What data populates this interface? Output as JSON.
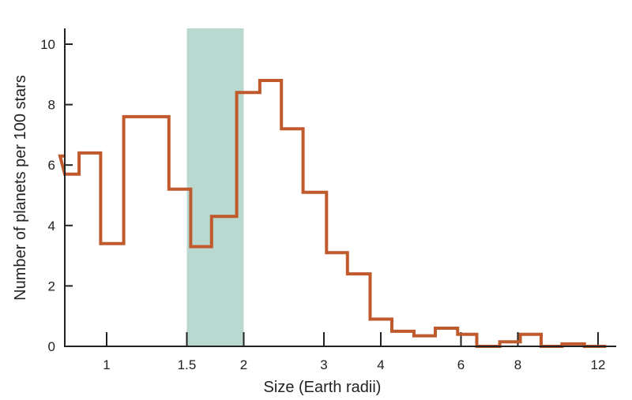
{
  "chart_data": {
    "type": "histogram",
    "title": "",
    "xlabel": "Size (Earth radii)",
    "ylabel": "Number of planets per 100 stars",
    "x_scale": "log",
    "xlim": [
      0.75,
      13
    ],
    "ylim": [
      0,
      10.5
    ],
    "x_ticks": [
      {
        "value": 1,
        "label": "1"
      },
      {
        "value": 1.5,
        "label": "1.5"
      },
      {
        "value": 2,
        "label": "2"
      },
      {
        "value": 3,
        "label": "3"
      },
      {
        "value": 4,
        "label": "4"
      },
      {
        "value": 6,
        "label": "6"
      },
      {
        "value": 8,
        "label": "8"
      },
      {
        "value": 12,
        "label": "12"
      }
    ],
    "y_ticks": [
      {
        "value": 0,
        "label": "0"
      },
      {
        "value": 2,
        "label": "2"
      },
      {
        "value": 4,
        "label": "4"
      },
      {
        "value": 6,
        "label": "6"
      },
      {
        "value": 8,
        "label": "8"
      },
      {
        "value": 10,
        "label": "10"
      }
    ],
    "highlight_band": {
      "x_from": 1.5,
      "x_to": 2,
      "color": "#b9d8d0"
    },
    "bins": [
      {
        "x_from": 0.75,
        "x_to": 0.79,
        "value": 6.3
      },
      {
        "x_from": 0.79,
        "x_to": 0.87,
        "value": 5.7
      },
      {
        "x_from": 0.87,
        "x_to": 0.97,
        "value": 6.4
      },
      {
        "x_from": 0.97,
        "x_to": 1.09,
        "value": 3.4
      },
      {
        "x_from": 1.09,
        "x_to": 1.22,
        "value": 7.6
      },
      {
        "x_from": 1.22,
        "x_to": 1.37,
        "value": 7.6
      },
      {
        "x_from": 1.37,
        "x_to": 1.53,
        "value": 5.2
      },
      {
        "x_from": 1.53,
        "x_to": 1.7,
        "value": 3.3
      },
      {
        "x_from": 1.7,
        "x_to": 1.93,
        "value": 4.3
      },
      {
        "x_from": 1.93,
        "x_to": 2.17,
        "value": 8.4
      },
      {
        "x_from": 2.17,
        "x_to": 2.42,
        "value": 8.8
      },
      {
        "x_from": 2.42,
        "x_to": 2.7,
        "value": 7.2
      },
      {
        "x_from": 2.7,
        "x_to": 3.04,
        "value": 5.1
      },
      {
        "x_from": 3.04,
        "x_to": 3.38,
        "value": 3.1
      },
      {
        "x_from": 3.38,
        "x_to": 3.79,
        "value": 2.4
      },
      {
        "x_from": 3.79,
        "x_to": 4.23,
        "value": 0.9
      },
      {
        "x_from": 4.23,
        "x_to": 4.73,
        "value": 0.5
      },
      {
        "x_from": 4.73,
        "x_to": 5.27,
        "value": 0.35
      },
      {
        "x_from": 5.27,
        "x_to": 5.9,
        "value": 0.6
      },
      {
        "x_from": 5.9,
        "x_to": 6.5,
        "value": 0.4
      },
      {
        "x_from": 6.5,
        "x_to": 7.3,
        "value": 0.0
      },
      {
        "x_from": 7.3,
        "x_to": 8.1,
        "value": 0.15
      },
      {
        "x_from": 8.1,
        "x_to": 9.0,
        "value": 0.4
      },
      {
        "x_from": 9.0,
        "x_to": 10.0,
        "value": 0.0
      },
      {
        "x_from": 10.0,
        "x_to": 11.2,
        "value": 0.08
      },
      {
        "x_from": 11.2,
        "x_to": 12.5,
        "value": 0.0
      }
    ],
    "line_color": "#c05a2c",
    "grid": false,
    "legend": "none"
  }
}
